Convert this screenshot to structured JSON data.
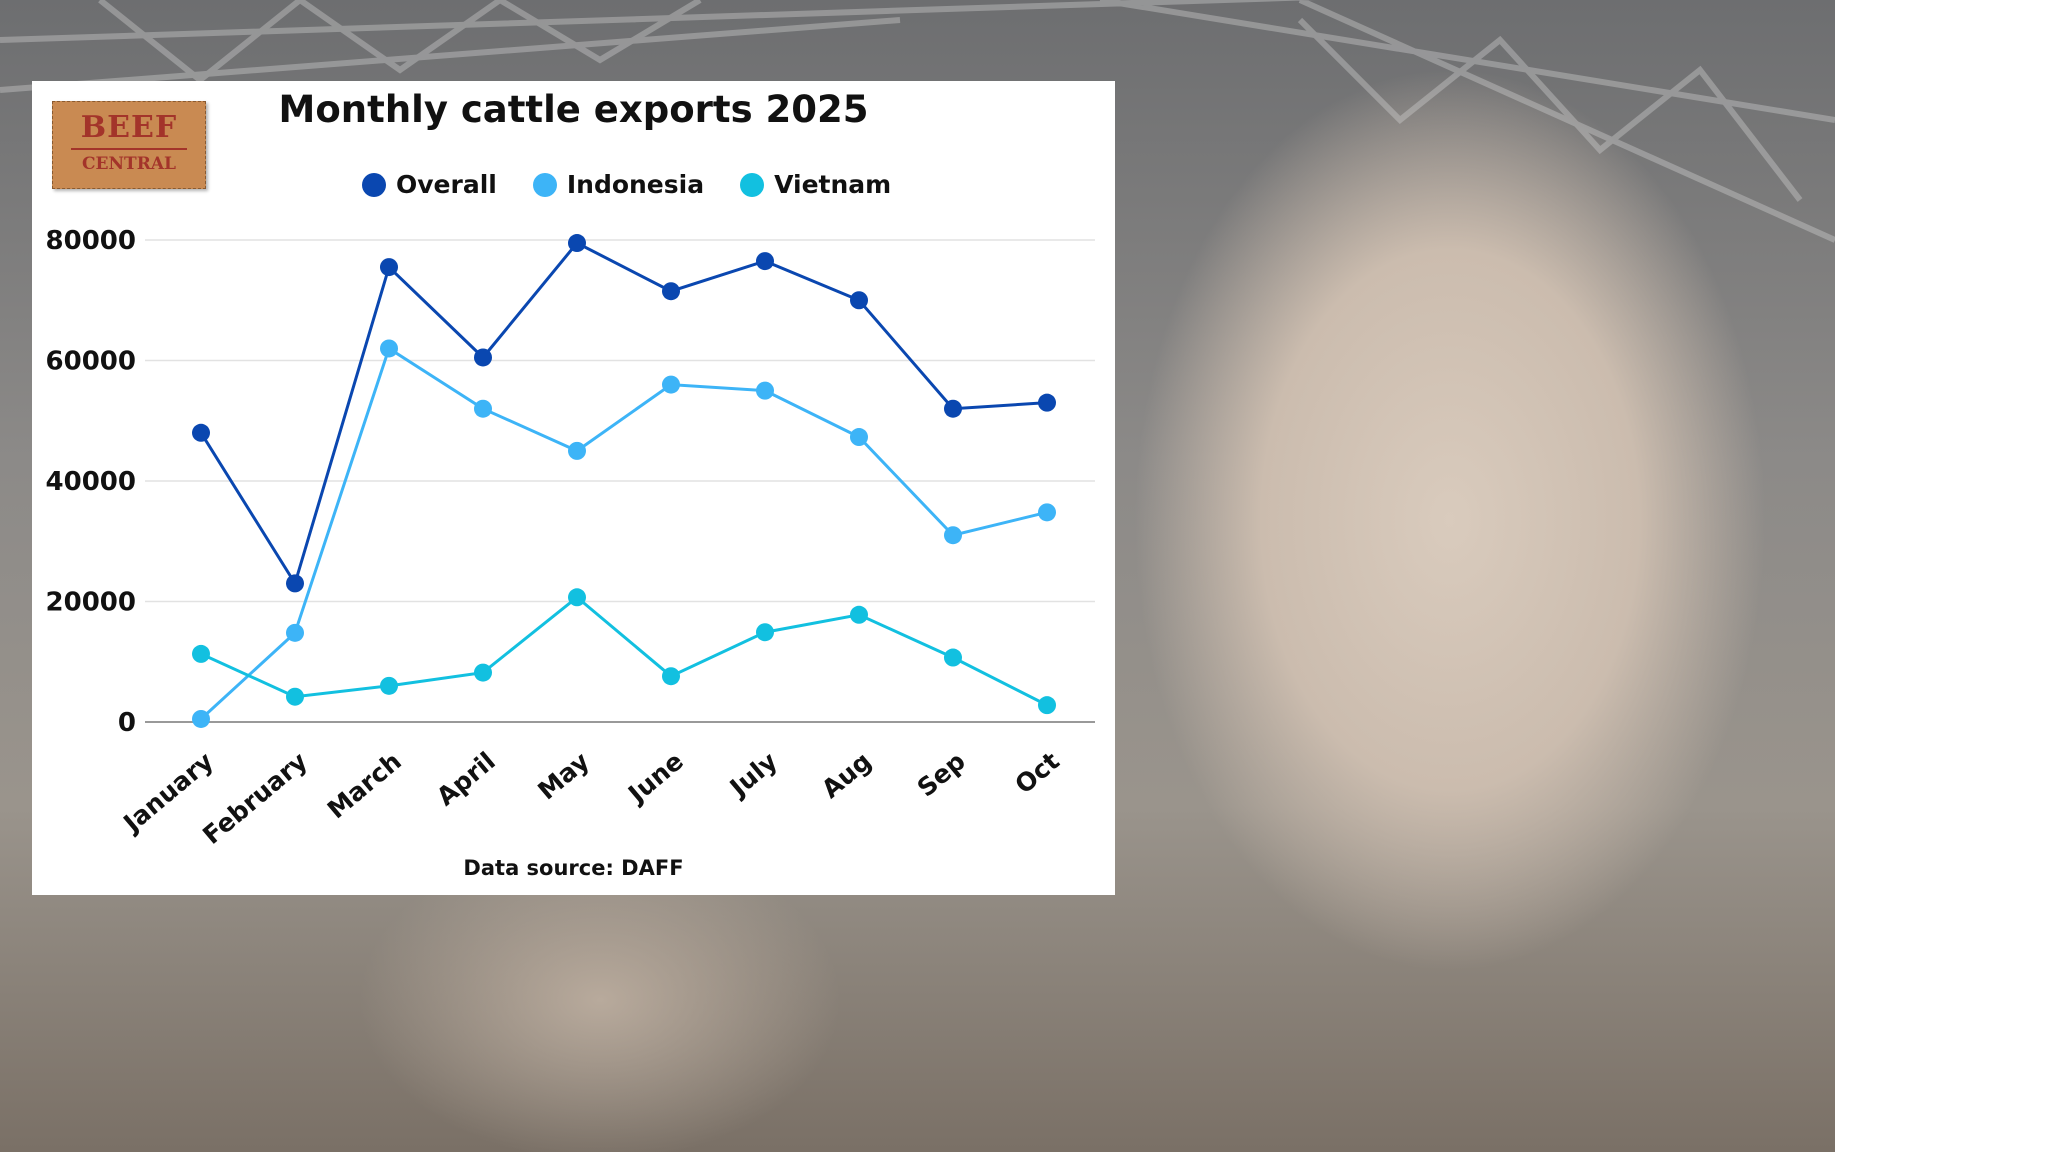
{
  "logo": {
    "line1": "BEEF",
    "line2": "CENTRAL"
  },
  "source": "Data source: DAFF",
  "chart_data": {
    "type": "line",
    "title": "Monthly cattle exports 2025",
    "categories": [
      "January",
      "February",
      "March",
      "April",
      "May",
      "June",
      "July",
      "Aug",
      "Sep",
      "Oct"
    ],
    "yticks": [
      0,
      20000,
      40000,
      60000,
      80000
    ],
    "ylim": [
      0,
      80000
    ],
    "grid": true,
    "legend_placement": "top",
    "series": [
      {
        "name": "Overall",
        "color": "#0a47b0",
        "values": [
          48000,
          23000,
          75500,
          60500,
          79500,
          71500,
          76500,
          70000,
          52000,
          53000
        ]
      },
      {
        "name": "Indonesia",
        "color": "#3db4f7",
        "values": [
          500,
          14800,
          62000,
          52000,
          45000,
          56000,
          55000,
          47300,
          31000,
          34800
        ]
      },
      {
        "name": "Vietnam",
        "color": "#12c0e0",
        "values": [
          11300,
          4200,
          6000,
          8200,
          20700,
          7600,
          14900,
          17800,
          10700,
          2800
        ]
      }
    ]
  }
}
